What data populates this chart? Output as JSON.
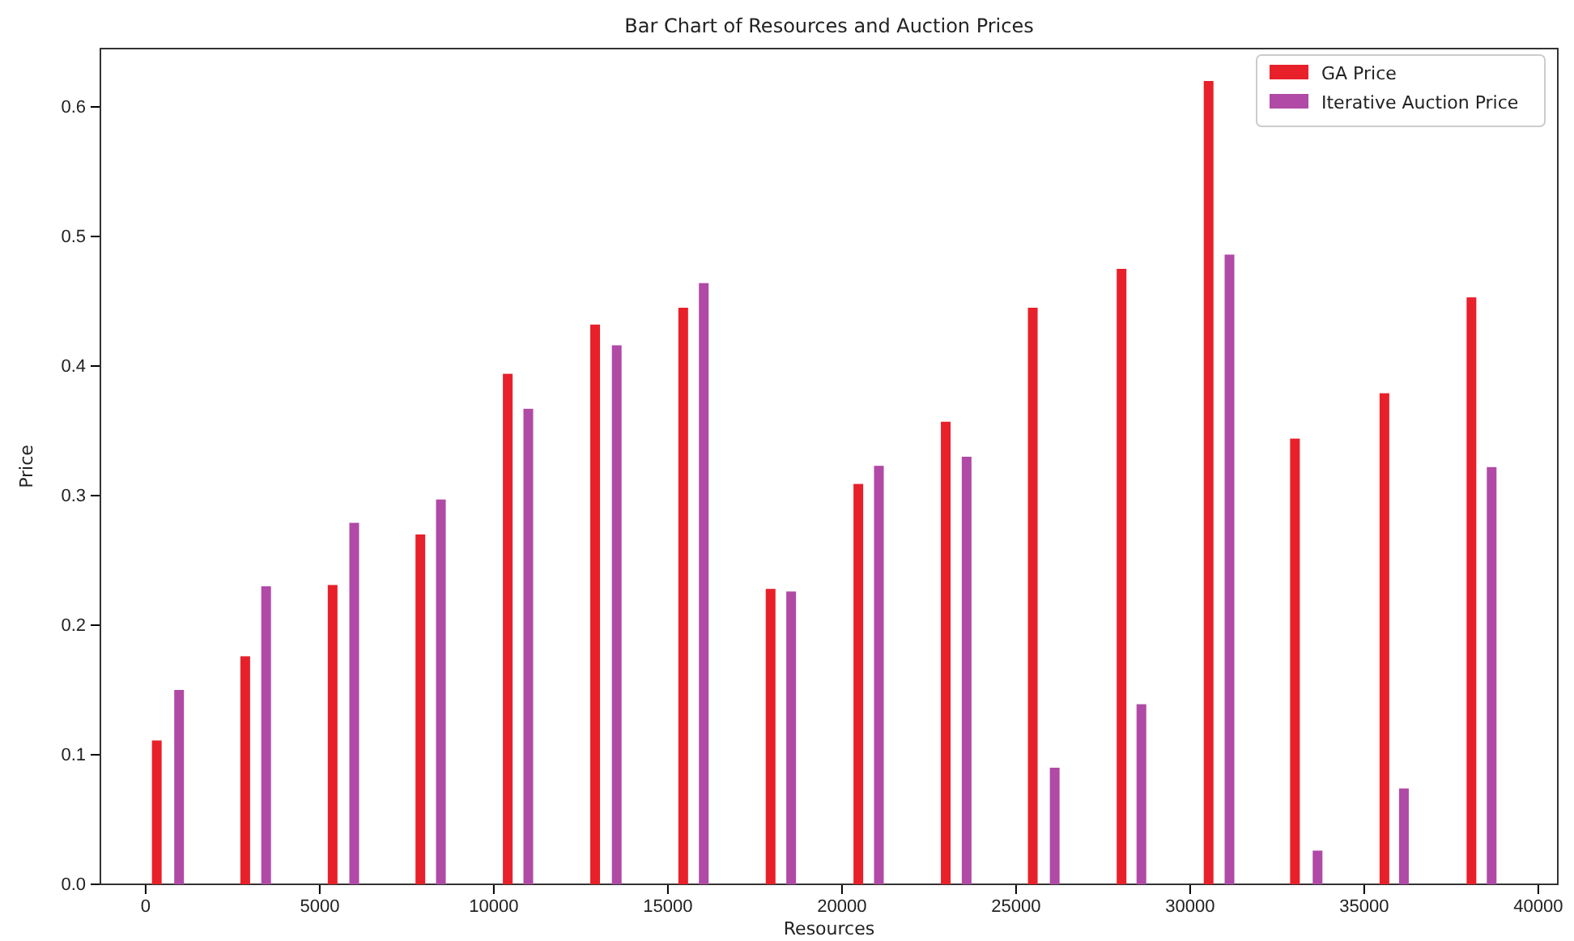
{
  "chart_data": {
    "type": "bar",
    "title": "Bar Chart of Resources and Auction Prices",
    "xlabel": "Resources",
    "ylabel": "Price",
    "xlim": [
      -1300,
      40560
    ],
    "xticks": [
      0,
      5000,
      10000,
      15000,
      20000,
      25000,
      30000,
      35000,
      40000
    ],
    "ylim": [
      0,
      0.645
    ],
    "yticks": [
      {
        "value": 0,
        "label": "0.0"
      },
      0.1,
      0.2,
      0.3,
      0.4,
      0.5,
      0.6
    ],
    "legend": "top right",
    "grid": false,
    "series": [
      {
        "name": "GA Price",
        "color": "#e8202a",
        "x": [
          320,
          2860,
          5370,
          7890,
          10400,
          12910,
          15440,
          17950,
          20470,
          22980,
          25480,
          28030,
          30530,
          33010,
          35580,
          38080
        ],
        "values": [
          0.111,
          0.176,
          0.231,
          0.27,
          0.394,
          0.432,
          0.445,
          0.228,
          0.309,
          0.357,
          0.445,
          0.475,
          0.62,
          0.344,
          0.379,
          0.453
        ]
      },
      {
        "name": "Iterative Auction Price",
        "color": "#b04aa6",
        "x": [
          960,
          3460,
          5990,
          8480,
          10990,
          13530,
          16030,
          18540,
          21060,
          23580,
          26110,
          28600,
          31130,
          33660,
          36140,
          38660
        ],
        "values": [
          0.15,
          0.23,
          0.279,
          0.297,
          0.367,
          0.416,
          0.464,
          0.226,
          0.323,
          0.33,
          0.09,
          0.139,
          0.486,
          0.026,
          0.074,
          0.322
        ]
      }
    ]
  }
}
